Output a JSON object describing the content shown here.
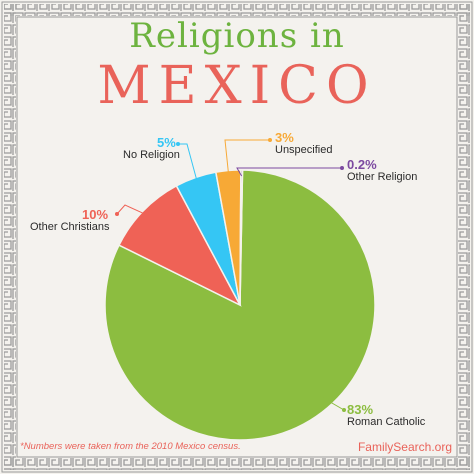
{
  "title": {
    "line1": "Religions in",
    "line2": "MEXICO"
  },
  "footnote": "*Numbers were taken from the 2010 Mexico census.",
  "brand": "FamilySearch.org",
  "colors": {
    "roman_catholic": "#8cbd40",
    "other_christians": "#ef6256",
    "no_religion": "#35c6f4",
    "unspecified": "#f7a936",
    "other_religion": "#7c4aa0",
    "title_green": "#6db33f",
    "title_red": "#e9635a"
  },
  "chart_data": {
    "type": "pie",
    "slices": [
      {
        "label": "Roman Catholic",
        "value": 83,
        "display": "83%",
        "color": "#8cbd40"
      },
      {
        "label": "Other Christians",
        "value": 10,
        "display": "10%",
        "color": "#ef6256"
      },
      {
        "label": "No Religion",
        "value": 5,
        "display": "5%",
        "color": "#35c6f4"
      },
      {
        "label": "Unspecified",
        "value": 3,
        "display": "3%",
        "color": "#f7a936"
      },
      {
        "label": "Other Religion",
        "value": 0.2,
        "display": "0.2%",
        "color": "#7c4aa0"
      }
    ]
  }
}
